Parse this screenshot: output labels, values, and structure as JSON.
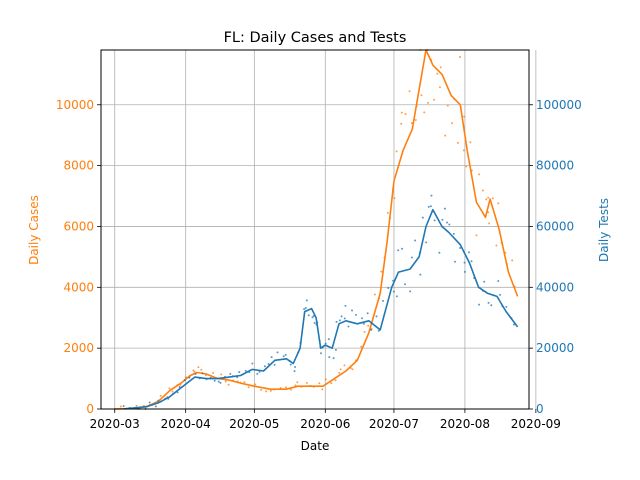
{
  "chart_data": {
    "type": "line",
    "title": "FL: Daily Cases and Tests",
    "xlabel": "Date",
    "ylabel_left": "Daily Cases",
    "ylabel_right": "Daily Tests",
    "x_ticks": [
      "2020-03",
      "2020-04",
      "2020-05",
      "2020-06",
      "2020-07",
      "2020-08",
      "2020-09"
    ],
    "y_left_ticks": [
      "0",
      "2000",
      "4000",
      "6000",
      "8000",
      "10000"
    ],
    "y_right_ticks": [
      "0",
      "20000",
      "40000",
      "60000",
      "80000",
      "100000"
    ],
    "xlim": [
      "2020-02-24",
      "2020-08-29"
    ],
    "ylim_left": [
      0,
      11800
    ],
    "ylim_right": [
      0,
      118000
    ],
    "grid": true,
    "colors": {
      "cases": "#ff7f0e",
      "tests": "#1f77b4",
      "grid": "#b0b0b0",
      "axis": "#000000"
    },
    "series": [
      {
        "axis": "left",
        "color": "#ff7f0e",
        "points": [
          [
            "2020-03-01",
            0
          ],
          [
            "2020-03-10",
            20
          ],
          [
            "2020-03-15",
            80
          ],
          [
            "2020-03-20",
            250
          ],
          [
            "2020-03-25",
            600
          ],
          [
            "2020-03-30",
            850
          ],
          [
            "2020-04-03",
            1100
          ],
          [
            "2020-04-06",
            1200
          ],
          [
            "2020-04-10",
            1150
          ],
          [
            "2020-04-15",
            1000
          ],
          [
            "2020-04-20",
            950
          ],
          [
            "2020-04-25",
            850
          ],
          [
            "2020-05-01",
            750
          ],
          [
            "2020-05-08",
            650
          ],
          [
            "2020-05-15",
            650
          ],
          [
            "2020-05-20",
            750
          ],
          [
            "2020-05-25",
            750
          ],
          [
            "2020-05-31",
            750
          ],
          [
            "2020-06-05",
            1000
          ],
          [
            "2020-06-10",
            1250
          ],
          [
            "2020-06-15",
            1600
          ],
          [
            "2020-06-20",
            2500
          ],
          [
            "2020-06-25",
            3800
          ],
          [
            "2020-06-28",
            5500
          ],
          [
            "2020-07-01",
            7500
          ],
          [
            "2020-07-05",
            8500
          ],
          [
            "2020-07-09",
            9200
          ],
          [
            "2020-07-12",
            10500
          ],
          [
            "2020-07-15",
            11800
          ],
          [
            "2020-07-18",
            11300
          ],
          [
            "2020-07-22",
            11000
          ],
          [
            "2020-07-26",
            10300
          ],
          [
            "2020-07-30",
            10000
          ],
          [
            "2020-08-02",
            8500
          ],
          [
            "2020-08-06",
            6800
          ],
          [
            "2020-08-10",
            6300
          ],
          [
            "2020-08-12",
            6900
          ],
          [
            "2020-08-16",
            5900
          ],
          [
            "2020-08-20",
            4500
          ],
          [
            "2020-08-24",
            3700
          ]
        ]
      },
      {
        "axis": "right",
        "color": "#1f77b4",
        "points": [
          [
            "2020-03-05",
            0
          ],
          [
            "2020-03-15",
            800
          ],
          [
            "2020-03-20",
            2000
          ],
          [
            "2020-03-25",
            4000
          ],
          [
            "2020-03-30",
            7000
          ],
          [
            "2020-04-05",
            10500
          ],
          [
            "2020-04-10",
            10000
          ],
          [
            "2020-04-15",
            10000
          ],
          [
            "2020-04-20",
            10500
          ],
          [
            "2020-04-25",
            11000
          ],
          [
            "2020-04-30",
            13000
          ],
          [
            "2020-05-05",
            12500
          ],
          [
            "2020-05-10",
            16000
          ],
          [
            "2020-05-15",
            16500
          ],
          [
            "2020-05-18",
            15000
          ],
          [
            "2020-05-21",
            20000
          ],
          [
            "2020-05-23",
            32000
          ],
          [
            "2020-05-26",
            33000
          ],
          [
            "2020-05-28",
            30000
          ],
          [
            "2020-05-30",
            20000
          ],
          [
            "2020-06-01",
            21000
          ],
          [
            "2020-06-04",
            20000
          ],
          [
            "2020-06-07",
            28000
          ],
          [
            "2020-06-10",
            29000
          ],
          [
            "2020-06-15",
            28000
          ],
          [
            "2020-06-20",
            29000
          ],
          [
            "2020-06-25",
            26000
          ],
          [
            "2020-06-30",
            40000
          ],
          [
            "2020-07-03",
            45000
          ],
          [
            "2020-07-08",
            46000
          ],
          [
            "2020-07-12",
            50000
          ],
          [
            "2020-07-15",
            60000
          ],
          [
            "2020-07-18",
            65500
          ],
          [
            "2020-07-22",
            60000
          ],
          [
            "2020-07-25",
            58000
          ],
          [
            "2020-07-30",
            54000
          ],
          [
            "2020-08-03",
            48000
          ],
          [
            "2020-08-07",
            40000
          ],
          [
            "2020-08-11",
            38000
          ],
          [
            "2020-08-15",
            37000
          ],
          [
            "2020-08-19",
            32000
          ],
          [
            "2020-08-24",
            27000
          ]
        ]
      }
    ]
  }
}
